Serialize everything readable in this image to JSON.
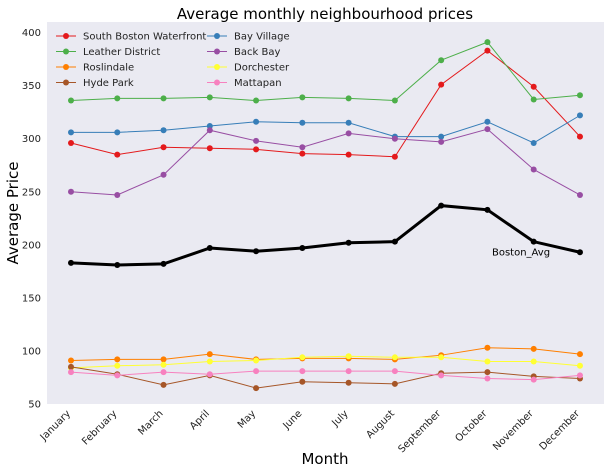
{
  "chart_data": {
    "type": "line",
    "title": "Average monthly neighbourhood prices",
    "xlabel": "Month",
    "ylabel": "Average Price",
    "categories": [
      "January",
      "February",
      "March",
      "April",
      "May",
      "June",
      "July",
      "August",
      "September",
      "October",
      "November",
      "December"
    ],
    "ylim": [
      50,
      410
    ],
    "yticks": [
      50,
      100,
      150,
      200,
      250,
      300,
      350,
      400
    ],
    "grid": false,
    "legend_position": "top-left",
    "background_color": "#eaeaf2",
    "series": [
      {
        "name": "South Boston Waterfront",
        "color": "#e41a1c",
        "values": [
          296,
          285,
          292,
          291,
          290,
          286,
          285,
          283,
          351,
          383,
          349,
          302
        ]
      },
      {
        "name": "Bay Village",
        "color": "#377eb8",
        "values": [
          306,
          306,
          308,
          312,
          316,
          315,
          315,
          302,
          302,
          316,
          296,
          322
        ]
      },
      {
        "name": "Leather District",
        "color": "#4daf4a",
        "values": [
          336,
          338,
          338,
          339,
          336,
          339,
          338,
          336,
          374,
          391,
          337,
          341
        ]
      },
      {
        "name": "Back Bay",
        "color": "#984ea3",
        "values": [
          250,
          247,
          266,
          308,
          298,
          292,
          305,
          300,
          297,
          309,
          271,
          247
        ]
      },
      {
        "name": "Roslindale",
        "color": "#ff7f00",
        "values": [
          91,
          92,
          92,
          97,
          92,
          93,
          93,
          92,
          96,
          103,
          102,
          97
        ]
      },
      {
        "name": "Dorchester",
        "color": "#ffff33",
        "values": [
          84,
          86,
          87,
          90,
          91,
          94,
          95,
          94,
          94,
          90,
          90,
          86
        ]
      },
      {
        "name": "Hyde Park",
        "color": "#a65628",
        "values": [
          85,
          78,
          68,
          77,
          65,
          71,
          70,
          69,
          79,
          80,
          76,
          74
        ]
      },
      {
        "name": "Mattapan",
        "color": "#f781bf",
        "values": [
          80,
          77,
          80,
          78,
          81,
          81,
          81,
          81,
          77,
          74,
          73,
          77
        ]
      }
    ],
    "average_series": {
      "label": "Boston_Avg",
      "color": "#000000",
      "values": [
        183,
        181,
        182,
        197,
        194,
        197,
        202,
        203,
        237,
        233,
        203,
        193
      ]
    }
  }
}
